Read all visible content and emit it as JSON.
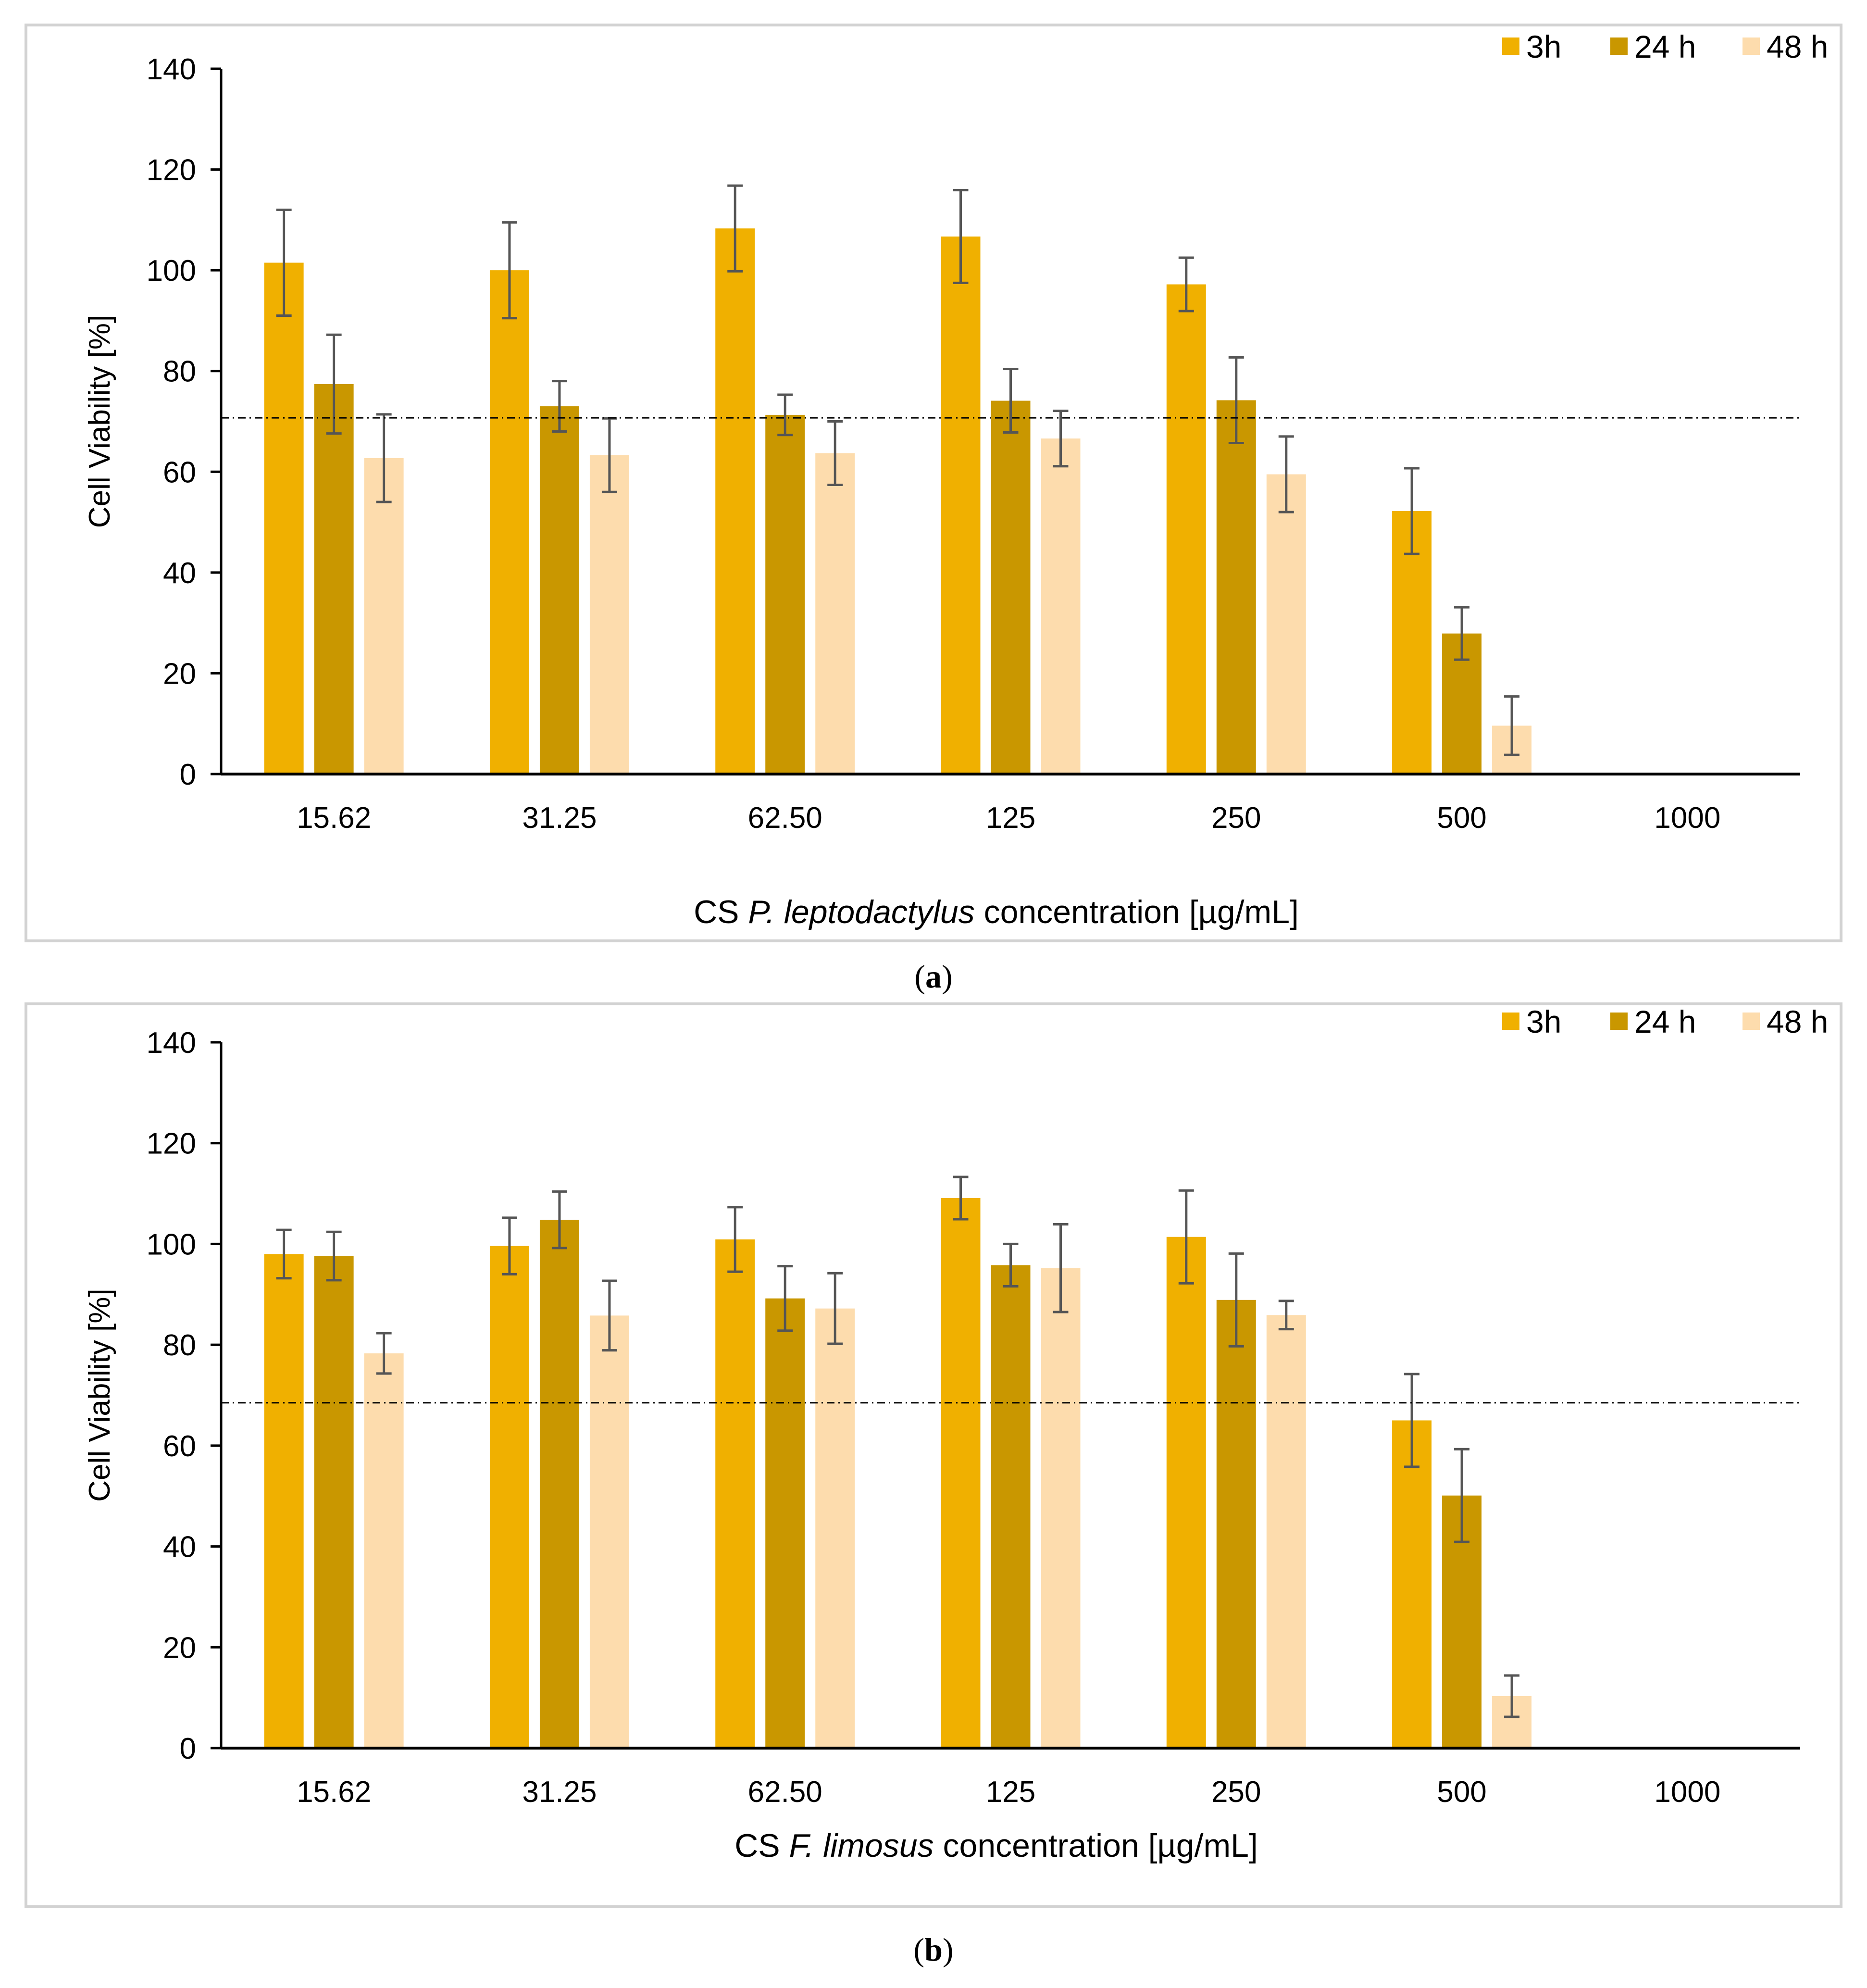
{
  "chart_data": [
    {
      "type": "bar",
      "panel_label": "a",
      "ylabel": "Cell Viability [%]",
      "xlabel": {
        "prefix": "CS ",
        "species": "P. leptodactylus",
        "suffix": " concentration [µg/mL]"
      },
      "categories": [
        "15.62",
        "31.25",
        "62.50",
        "125",
        "250",
        "500",
        "1000"
      ],
      "ylim": [
        0,
        140
      ],
      "yticks": [
        "0",
        "20",
        "40",
        "60",
        "80",
        "100",
        "120",
        "140"
      ],
      "reference_line": 70.7,
      "legend_position": "top-right",
      "series": [
        {
          "name": "3h",
          "color": "#F0B000",
          "values": [
            101.5,
            100,
            108.3,
            106.7,
            97.2,
            52.2,
            0
          ],
          "errors": [
            10.5,
            9.5,
            8.5,
            9.2,
            5.3,
            8.5,
            0
          ]
        },
        {
          "name": "24 h",
          "color": "#C99700",
          "values": [
            77.4,
            73,
            71.3,
            74.1,
            74.2,
            27.9,
            0
          ],
          "errors": [
            9.8,
            5,
            4,
            6.3,
            8.5,
            5.2,
            0
          ]
        },
        {
          "name": "48 h",
          "color": "#FDDCAD",
          "values": [
            62.7,
            63.3,
            63.7,
            66.6,
            59.5,
            9.6,
            0
          ],
          "errors": [
            8.7,
            7.3,
            6.3,
            5.5,
            7.5,
            5.8,
            0
          ]
        }
      ]
    },
    {
      "type": "bar",
      "panel_label": "b",
      "ylabel": "Cell Viability [%]",
      "xlabel": {
        "prefix": "CS ",
        "species": "F. limosus",
        "suffix": " concentration [µg/mL]"
      },
      "categories": [
        "15.62",
        "31.25",
        "62.50",
        "125",
        "250",
        "500",
        "1000"
      ],
      "ylim": [
        0,
        140
      ],
      "yticks": [
        "0",
        "20",
        "40",
        "60",
        "80",
        "100",
        "120",
        "140"
      ],
      "reference_line": 68.5,
      "legend_position": "top-right",
      "series": [
        {
          "name": "3h",
          "color": "#F0B000",
          "values": [
            98,
            99.6,
            100.9,
            109.1,
            101.4,
            65,
            0
          ],
          "errors": [
            4.8,
            5.6,
            6.4,
            4.2,
            9.2,
            9.2,
            0
          ]
        },
        {
          "name": "24 h",
          "color": "#C99700",
          "values": [
            97.6,
            104.8,
            89.2,
            95.8,
            88.9,
            50.1,
            0
          ],
          "errors": [
            4.8,
            5.6,
            6.4,
            4.2,
            9.2,
            9.2,
            0
          ]
        },
        {
          "name": "48 h",
          "color": "#FDDCAD",
          "values": [
            78.3,
            85.8,
            87.2,
            95.2,
            85.9,
            10.3,
            0
          ],
          "errors": [
            4,
            6.9,
            7,
            8.7,
            2.8,
            4.1,
            0
          ]
        }
      ]
    }
  ]
}
